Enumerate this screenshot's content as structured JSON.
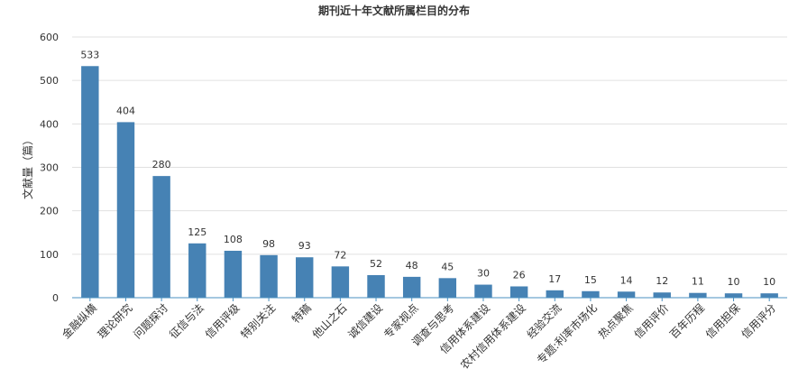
{
  "chart_data": {
    "type": "bar",
    "title": "期刊近十年文献所属栏目的分布",
    "xlabel": "",
    "ylabel": "文献量（篇）",
    "ylim": [
      0,
      600
    ],
    "yticks": [
      0,
      100,
      200,
      300,
      400,
      500,
      600
    ],
    "grid": true,
    "legend": "none",
    "bar_color": "#4682b4",
    "categories": [
      "金融纵横",
      "理论研究",
      "问题探讨",
      "征信与法",
      "信用评级",
      "特别关注",
      "特稿",
      "他山之石",
      "诚信建设",
      "专家视点",
      "调查与思考",
      "信用体系建设",
      "农村信用体系建设",
      "经验交流",
      "专题:利率市场化",
      "热点聚焦",
      "信用评价",
      "百年历程",
      "信用担保",
      "信用评分"
    ],
    "values": [
      533,
      404,
      280,
      125,
      108,
      98,
      93,
      72,
      52,
      48,
      45,
      30,
      26,
      17,
      15,
      14,
      12,
      11,
      10,
      10
    ]
  }
}
